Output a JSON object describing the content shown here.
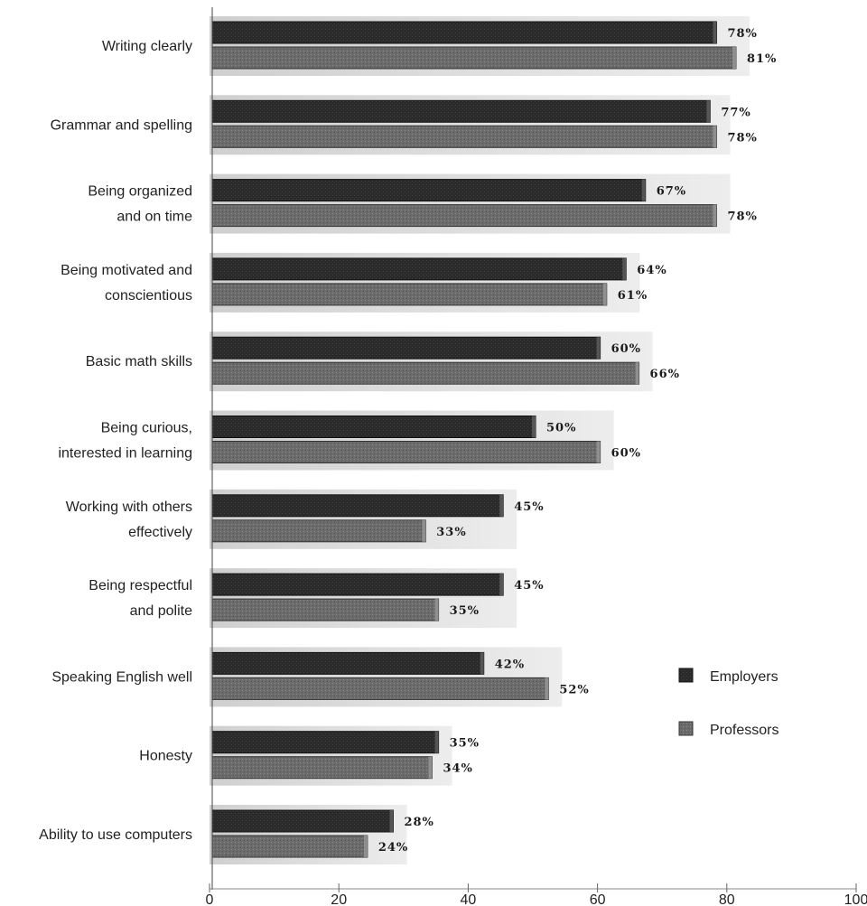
{
  "chart_data": {
    "type": "bar",
    "orientation": "horizontal",
    "categories": [
      [
        "Writing clearly"
      ],
      [
        "Grammar and spelling"
      ],
      [
        "Being organized",
        "and on time"
      ],
      [
        "Being motivated and",
        "conscientious"
      ],
      [
        "Basic math skills"
      ],
      [
        "Being curious,",
        "interested in learning"
      ],
      [
        "Working with others",
        "effectively"
      ],
      [
        "Being respectful",
        "and polite"
      ],
      [
        "Speaking English well"
      ],
      [
        "Honesty"
      ],
      [
        "Ability to use computers"
      ]
    ],
    "series": [
      {
        "name": "Employers",
        "color": "#2a2a2a",
        "values": [
          78,
          77,
          67,
          64,
          60,
          50,
          45,
          45,
          42,
          35,
          28
        ],
        "labels": [
          "78%",
          "77%",
          "67%",
          "64%",
          "60%",
          "50%",
          "45%",
          "45%",
          "42%",
          "35%",
          "28%"
        ]
      },
      {
        "name": "Professors",
        "color": "#6b6b6b",
        "values": [
          81,
          78,
          78,
          61,
          66,
          60,
          33,
          35,
          52,
          34,
          24
        ],
        "labels": [
          "81%",
          "78%",
          "78%",
          "61%",
          "66%",
          "60%",
          "33%",
          "35%",
          "52%",
          "34%",
          "24%"
        ]
      }
    ],
    "x_ticks": [
      "0",
      "20",
      "40",
      "60",
      "80",
      "100"
    ],
    "xlim": [
      0,
      100
    ],
    "grid": false,
    "legend_position": "right"
  }
}
